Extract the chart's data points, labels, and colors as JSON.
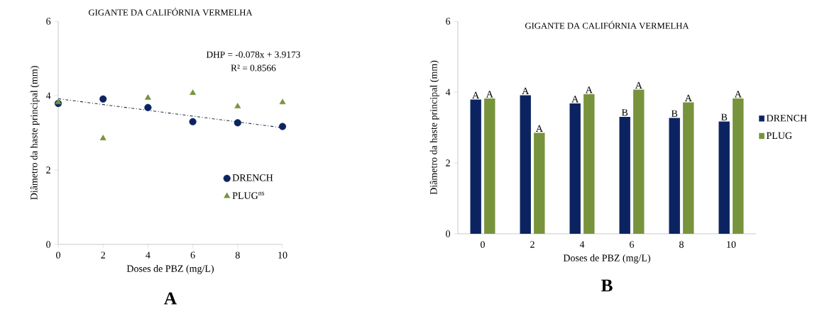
{
  "chart_data": [
    {
      "type": "scatter",
      "title": "GIGANTE DA CALIFÓRNIA VERMELHA",
      "xlabel": "Doses de PBZ (mg/L)",
      "ylabel": "Diâmetro da haste principal (mm)",
      "xlim": [
        0,
        10
      ],
      "xticks": [
        0,
        2,
        4,
        6,
        8,
        10
      ],
      "ylim": [
        0,
        6
      ],
      "yticks": [
        0,
        2,
        4,
        6
      ],
      "grid": false,
      "legend": "bottom right",
      "series": [
        {
          "name": "DRENCH",
          "color": "#0b2461",
          "marker": "circle",
          "x": [
            0,
            2,
            4,
            6,
            8,
            10
          ],
          "values": [
            3.79,
            3.91,
            3.68,
            3.3,
            3.27,
            3.17
          ]
        },
        {
          "name": "PLUG$^{ns}$",
          "color": "#77933c",
          "marker": "triangle",
          "x": [
            0,
            2,
            4,
            6,
            8,
            10
          ],
          "values": [
            3.82,
            2.85,
            3.94,
            4.07,
            3.71,
            3.82
          ]
        },
        {
          "type": "line",
          "color": "#1f2f45",
          "marker": "none",
          "line_style": "dashed",
          "x": [
            0,
            10
          ],
          "values": [
            3.9173,
            3.1373
          ]
        }
      ],
      "annotations": [
        "DHP = -0.078x + 3.9173",
        "R² = 0.8566",
        "A"
      ]
    },
    {
      "type": "bar",
      "title": "GIGANTE DA CALIFÓRNIA VERMELHA",
      "xlabel": "Doses de PBZ (mg/L)",
      "ylabel": "Diâmetro da haste principal (mm)",
      "categories": [
        "0",
        "2",
        "4",
        "6",
        "8",
        "10"
      ],
      "ylim": [
        0,
        6
      ],
      "yticks": [
        0,
        2,
        4,
        6
      ],
      "grid": false,
      "legend": "right",
      "series": [
        {
          "name": "DRENCH",
          "color": "#0b2461",
          "values": [
            3.79,
            3.91,
            3.68,
            3.3,
            3.27,
            3.17
          ],
          "value_labels": [
            "A",
            "A",
            "A",
            "B",
            "B",
            "B"
          ]
        },
        {
          "name": "PLUG",
          "color": "#77933c",
          "values": [
            3.82,
            2.85,
            3.94,
            4.07,
            3.71,
            3.82
          ],
          "value_labels": [
            "A",
            "A",
            "A",
            "A",
            "A",
            "A"
          ]
        }
      ],
      "annotations": [
        "B"
      ]
    }
  ]
}
